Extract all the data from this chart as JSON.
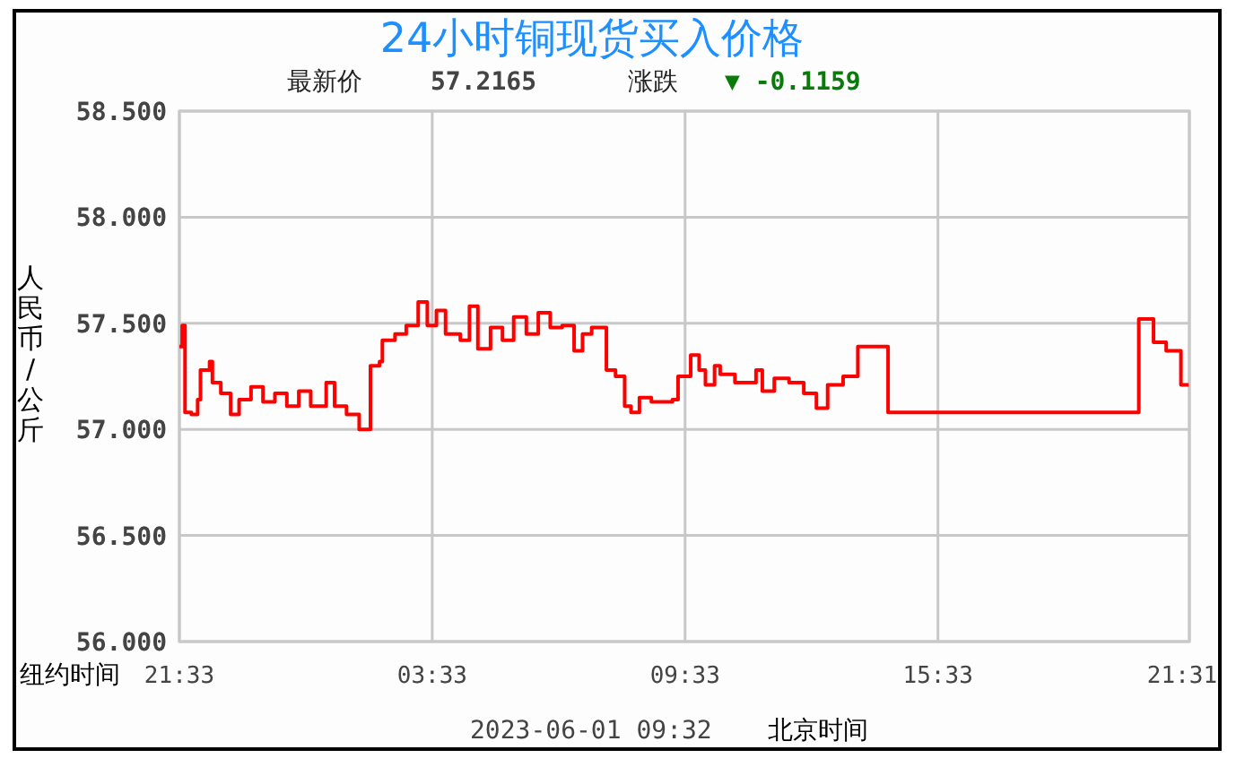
{
  "chart_data": {
    "type": "step",
    "title": "24小时铜现货买入价格",
    "xlabel": "纽约时间",
    "ylabel": "人民币/公斤",
    "annotations": [
      "最新价",
      "57.2165",
      "涨跌",
      "▼ -0.1159",
      "2023-06-01 09:32",
      "北京时间"
    ],
    "x": [
      "2023-05-30T21:33",
      "2023-05-30T21:37",
      "2023-05-30T21:41",
      "2023-05-30T21:50",
      "2023-05-30T21:59",
      "2023-05-30T22:03",
      "2023-05-30T22:16",
      "2023-05-30T22:20",
      "2023-05-30T22:32",
      "2023-05-30T22:46",
      "2023-05-30T22:58",
      "2023-05-30T23:15",
      "2023-05-30T23:32",
      "2023-05-30T23:49",
      "2023-05-31T00:06",
      "2023-05-31T00:23",
      "2023-05-31T00:40",
      "2023-05-31T01:02",
      "2023-05-31T01:14",
      "2023-05-31T01:31",
      "2023-05-31T01:49",
      "2023-05-31T02:01",
      "2023-05-31T02:05",
      "2023-05-31T02:18",
      "2023-05-31T02:22",
      "2023-05-31T02:40",
      "2023-05-31T02:56",
      "2023-05-31T03:13",
      "2023-05-31T03:26",
      "2023-05-31T03:39",
      "2023-05-31T03:52",
      "2023-05-31T04:13",
      "2023-05-31T04:26",
      "2023-05-31T04:38",
      "2023-05-31T04:56",
      "2023-05-31T05:13",
      "2023-05-31T05:29",
      "2023-05-31T05:47",
      "2023-05-31T06:04",
      "2023-05-31T06:21",
      "2023-05-31T06:38",
      "2023-05-31T06:55",
      "2023-05-31T07:07",
      "2023-05-31T07:20",
      "2023-05-31T07:33",
      "2023-05-31T07:41",
      "2023-05-31T07:54",
      "2023-05-31T07:59",
      "2023-05-31T08:07",
      "2023-05-31T08:16",
      "2023-05-31T08:28",
      "2023-05-31T08:45",
      "2023-05-31T09:15",
      "2023-05-31T09:23",
      "2023-05-31T09:41",
      "2023-05-31T09:53",
      "2023-05-31T10:02",
      "2023-05-31T10:15",
      "2023-05-31T10:23",
      "2023-05-31T10:44",
      "2023-05-31T11:14",
      "2023-05-31T11:23",
      "2023-05-31T11:40",
      "2023-05-31T12:01",
      "2023-05-31T12:22",
      "2023-05-31T12:40",
      "2023-05-31T12:56",
      "2023-05-31T13:18",
      "2023-05-31T13:39",
      "2023-05-31T14:17",
      "2023-05-31T14:22",
      "2023-05-31T20:15",
      "2023-05-31T20:19",
      "2023-05-31T20:36",
      "2023-05-31T20:40",
      "2023-05-31T20:58",
      "2023-05-31T21:19",
      "2023-05-31T21:30"
    ],
    "series": [
      {
        "color": "#ff0000",
        "values": [
          57.39,
          57.49,
          57.08,
          57.07,
          57.14,
          57.28,
          57.32,
          57.22,
          57.17,
          57.07,
          57.14,
          57.2,
          57.13,
          57.17,
          57.11,
          57.18,
          57.11,
          57.22,
          57.11,
          57.07,
          57.0,
          57.0,
          57.3,
          57.32,
          57.42,
          57.45,
          57.49,
          57.6,
          57.49,
          57.56,
          57.45,
          57.42,
          57.58,
          57.38,
          57.48,
          57.42,
          57.53,
          57.45,
          57.55,
          57.48,
          57.49,
          57.37,
          57.45,
          57.48,
          57.48,
          57.28,
          57.25,
          57.25,
          57.11,
          57.08,
          57.15,
          57.13,
          57.14,
          57.25,
          57.35,
          57.28,
          57.21,
          57.3,
          57.26,
          57.22,
          57.28,
          57.18,
          57.24,
          57.22,
          57.17,
          57.1,
          57.21,
          57.25,
          57.39,
          57.39,
          57.08,
          57.08,
          57.52,
          57.52,
          57.41,
          57.37,
          57.21,
          57.21
        ]
      }
    ],
    "xlim": [
      "2023-05-30T21:33",
      "2023-05-31T21:31"
    ],
    "xticks": [
      {
        "value": "2023-05-30T21:33",
        "label": "21:33"
      },
      {
        "value": "2023-05-31T03:33",
        "label": "03:33"
      },
      {
        "value": "2023-05-31T09:33",
        "label": "09:33"
      },
      {
        "value": "2023-05-31T15:33",
        "label": "15:33"
      },
      {
        "value": "2023-05-31T21:31",
        "label": "21:31"
      }
    ],
    "ylim": [
      56,
      58.5
    ],
    "yticks": [
      {
        "value": 56,
        "label": "56.000"
      },
      {
        "value": 56.5,
        "label": "56.500"
      },
      {
        "value": 57,
        "label": "57.000"
      },
      {
        "value": 57.5,
        "label": "57.500"
      },
      {
        "value": 58,
        "label": "58.000"
      },
      {
        "value": 58.5,
        "label": "58.500"
      }
    ],
    "grid": true
  }
}
